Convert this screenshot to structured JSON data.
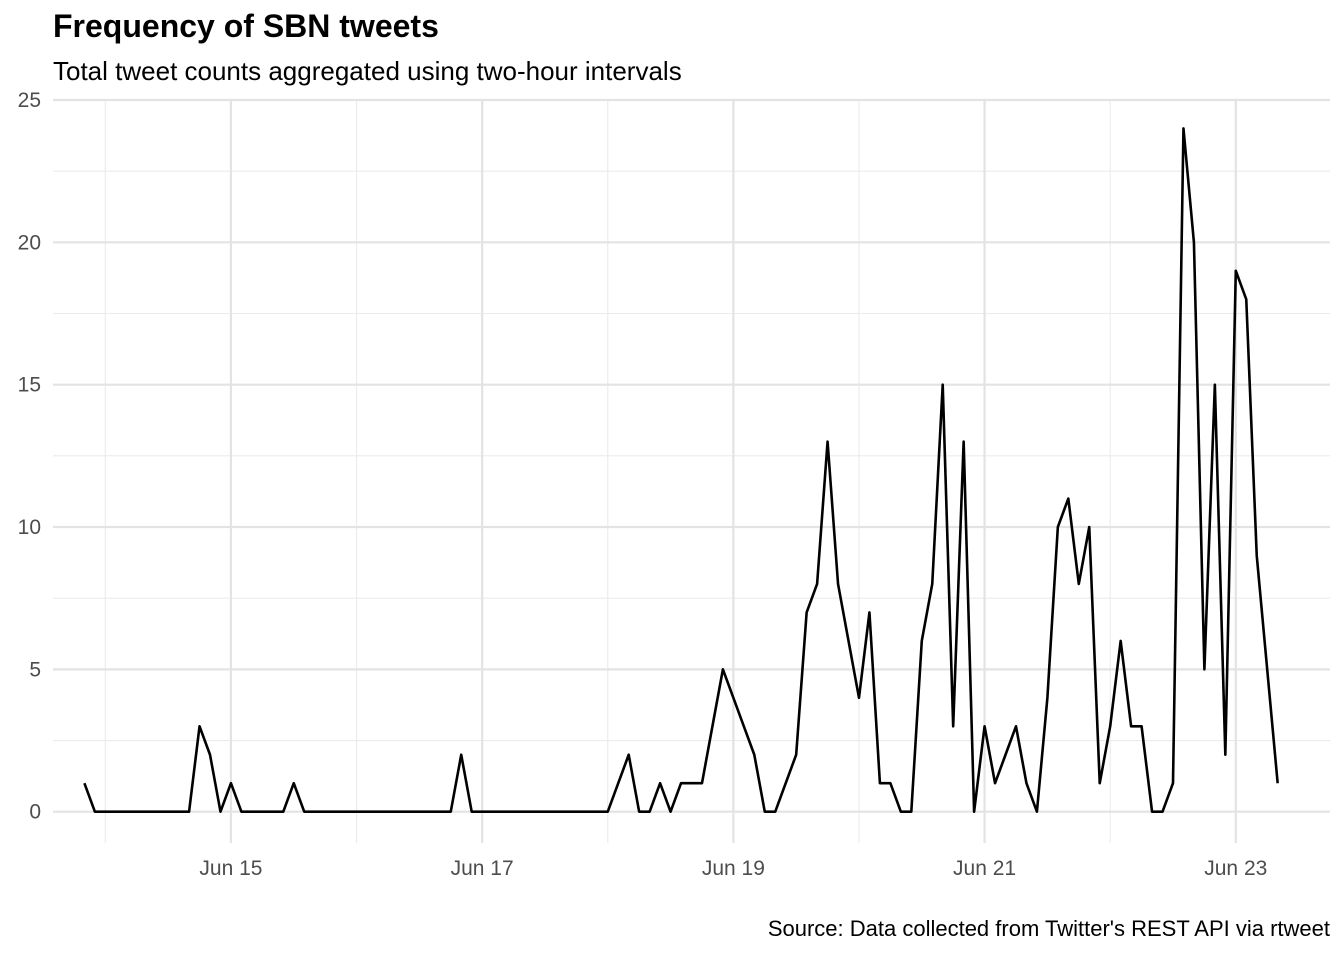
{
  "chart_data": {
    "type": "line",
    "title": "Frequency of SBN tweets",
    "subtitle": "Total tweet counts aggregated using two-hour intervals",
    "caption": "Source: Data collected from Twitter's REST API via rtweet",
    "xlabel": "",
    "ylabel": "",
    "x_unit": "date-time (two-hour intervals)",
    "xlim": [
      "2018-06-13T14:00",
      "2018-06-23T18:00"
    ],
    "ylim": [
      -1.1,
      25
    ],
    "x_ticks": [
      {
        "label": "Jun 15",
        "at": "2018-06-15T00:00"
      },
      {
        "label": "Jun 17",
        "at": "2018-06-17T00:00"
      },
      {
        "label": "Jun 19",
        "at": "2018-06-19T00:00"
      },
      {
        "label": "Jun 21",
        "at": "2018-06-21T00:00"
      },
      {
        "label": "Jun 23",
        "at": "2018-06-23T00:00"
      }
    ],
    "y_ticks": [
      0,
      5,
      10,
      15,
      20,
      25
    ],
    "grid": true,
    "legend": "none",
    "line_color": "#000000",
    "series": [
      {
        "points": [
          [
            "2018-06-13T20:00",
            1
          ],
          [
            "2018-06-13T22:00",
            0
          ],
          [
            "2018-06-14T00:00",
            0
          ],
          [
            "2018-06-14T02:00",
            0
          ],
          [
            "2018-06-14T04:00",
            0
          ],
          [
            "2018-06-14T06:00",
            0
          ],
          [
            "2018-06-14T08:00",
            0
          ],
          [
            "2018-06-14T10:00",
            0
          ],
          [
            "2018-06-14T12:00",
            0
          ],
          [
            "2018-06-14T14:00",
            0
          ],
          [
            "2018-06-14T16:00",
            0
          ],
          [
            "2018-06-14T18:00",
            3
          ],
          [
            "2018-06-14T20:00",
            2
          ],
          [
            "2018-06-14T22:00",
            0
          ],
          [
            "2018-06-15T00:00",
            1
          ],
          [
            "2018-06-15T02:00",
            0
          ],
          [
            "2018-06-15T04:00",
            0
          ],
          [
            "2018-06-15T06:00",
            0
          ],
          [
            "2018-06-15T08:00",
            0
          ],
          [
            "2018-06-15T10:00",
            0
          ],
          [
            "2018-06-15T12:00",
            1
          ],
          [
            "2018-06-15T14:00",
            0
          ],
          [
            "2018-06-15T16:00",
            0
          ],
          [
            "2018-06-15T18:00",
            0
          ],
          [
            "2018-06-15T20:00",
            0
          ],
          [
            "2018-06-15T22:00",
            0
          ],
          [
            "2018-06-16T00:00",
            0
          ],
          [
            "2018-06-16T02:00",
            0
          ],
          [
            "2018-06-16T04:00",
            0
          ],
          [
            "2018-06-16T06:00",
            0
          ],
          [
            "2018-06-16T08:00",
            0
          ],
          [
            "2018-06-16T10:00",
            0
          ],
          [
            "2018-06-16T12:00",
            0
          ],
          [
            "2018-06-16T14:00",
            0
          ],
          [
            "2018-06-16T16:00",
            0
          ],
          [
            "2018-06-16T18:00",
            0
          ],
          [
            "2018-06-16T20:00",
            2
          ],
          [
            "2018-06-16T22:00",
            0
          ],
          [
            "2018-06-17T00:00",
            0
          ],
          [
            "2018-06-17T02:00",
            0
          ],
          [
            "2018-06-17T04:00",
            0
          ],
          [
            "2018-06-17T06:00",
            0
          ],
          [
            "2018-06-17T08:00",
            0
          ],
          [
            "2018-06-17T10:00",
            0
          ],
          [
            "2018-06-17T12:00",
            0
          ],
          [
            "2018-06-17T14:00",
            0
          ],
          [
            "2018-06-17T16:00",
            0
          ],
          [
            "2018-06-17T18:00",
            0
          ],
          [
            "2018-06-17T20:00",
            0
          ],
          [
            "2018-06-17T22:00",
            0
          ],
          [
            "2018-06-18T00:00",
            0
          ],
          [
            "2018-06-18T02:00",
            1
          ],
          [
            "2018-06-18T04:00",
            2
          ],
          [
            "2018-06-18T06:00",
            0
          ],
          [
            "2018-06-18T08:00",
            0
          ],
          [
            "2018-06-18T10:00",
            1
          ],
          [
            "2018-06-18T12:00",
            0
          ],
          [
            "2018-06-18T14:00",
            1
          ],
          [
            "2018-06-18T16:00",
            1
          ],
          [
            "2018-06-18T18:00",
            1
          ],
          [
            "2018-06-18T20:00",
            3
          ],
          [
            "2018-06-18T22:00",
            5
          ],
          [
            "2018-06-19T00:00",
            4
          ],
          [
            "2018-06-19T02:00",
            3
          ],
          [
            "2018-06-19T04:00",
            2
          ],
          [
            "2018-06-19T06:00",
            0
          ],
          [
            "2018-06-19T08:00",
            0
          ],
          [
            "2018-06-19T10:00",
            1
          ],
          [
            "2018-06-19T12:00",
            2
          ],
          [
            "2018-06-19T14:00",
            7
          ],
          [
            "2018-06-19T16:00",
            8
          ],
          [
            "2018-06-19T18:00",
            13
          ],
          [
            "2018-06-19T20:00",
            8
          ],
          [
            "2018-06-19T22:00",
            6
          ],
          [
            "2018-06-20T00:00",
            4
          ],
          [
            "2018-06-20T02:00",
            7
          ],
          [
            "2018-06-20T04:00",
            1
          ],
          [
            "2018-06-20T06:00",
            1
          ],
          [
            "2018-06-20T08:00",
            0
          ],
          [
            "2018-06-20T10:00",
            0
          ],
          [
            "2018-06-20T12:00",
            6
          ],
          [
            "2018-06-20T14:00",
            8
          ],
          [
            "2018-06-20T16:00",
            15
          ],
          [
            "2018-06-20T18:00",
            3
          ],
          [
            "2018-06-20T20:00",
            13
          ],
          [
            "2018-06-20T22:00",
            0
          ],
          [
            "2018-06-21T00:00",
            3
          ],
          [
            "2018-06-21T02:00",
            1
          ],
          [
            "2018-06-21T04:00",
            2
          ],
          [
            "2018-06-21T06:00",
            3
          ],
          [
            "2018-06-21T08:00",
            1
          ],
          [
            "2018-06-21T10:00",
            0
          ],
          [
            "2018-06-21T12:00",
            4
          ],
          [
            "2018-06-21T14:00",
            10
          ],
          [
            "2018-06-21T16:00",
            11
          ],
          [
            "2018-06-21T18:00",
            8
          ],
          [
            "2018-06-21T20:00",
            10
          ],
          [
            "2018-06-21T22:00",
            1
          ],
          [
            "2018-06-22T00:00",
            3
          ],
          [
            "2018-06-22T02:00",
            6
          ],
          [
            "2018-06-22T04:00",
            3
          ],
          [
            "2018-06-22T06:00",
            3
          ],
          [
            "2018-06-22T08:00",
            0
          ],
          [
            "2018-06-22T10:00",
            0
          ],
          [
            "2018-06-22T12:00",
            1
          ],
          [
            "2018-06-22T14:00",
            24
          ],
          [
            "2018-06-22T16:00",
            20
          ],
          [
            "2018-06-22T18:00",
            5
          ],
          [
            "2018-06-22T20:00",
            15
          ],
          [
            "2018-06-22T22:00",
            2
          ],
          [
            "2018-06-23T00:00",
            19
          ],
          [
            "2018-06-23T02:00",
            18
          ],
          [
            "2018-06-23T04:00",
            9
          ],
          [
            "2018-06-23T06:00",
            5
          ],
          [
            "2018-06-23T08:00",
            1
          ]
        ]
      }
    ]
  }
}
